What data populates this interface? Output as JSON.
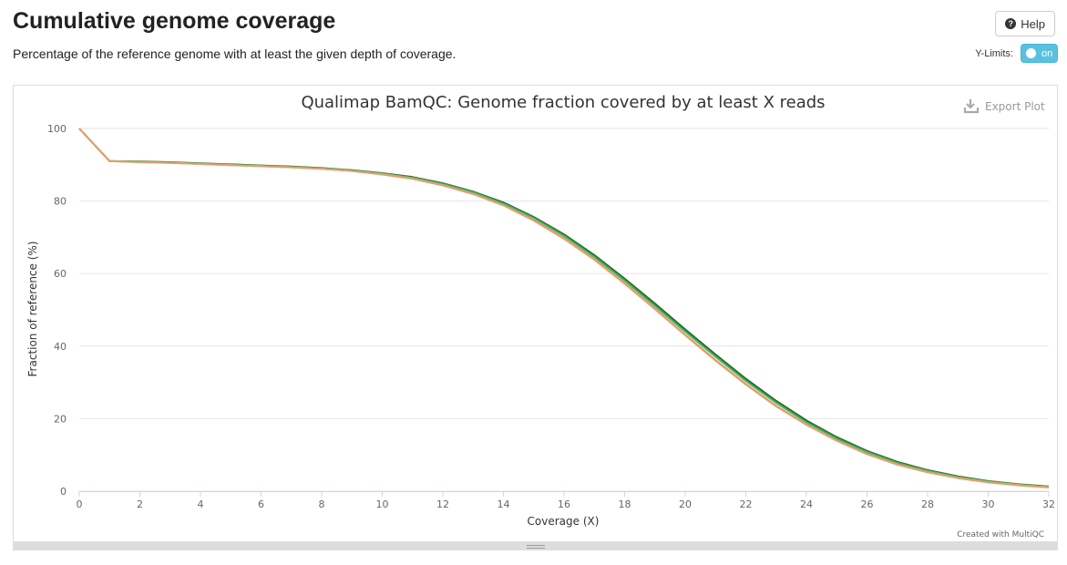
{
  "header": {
    "title": "Cumulative genome coverage",
    "description": "Percentage of the reference genome with at least the given depth of coverage.",
    "help_label": "Help",
    "ylimits_label": "Y-Limits:",
    "toggle_label": "on"
  },
  "plot": {
    "export_label": "Export Plot",
    "credit": "Created with MultiQC"
  },
  "colors": {
    "toggle": "#5bc0de",
    "series": [
      "#2d6a1f",
      "#3cb371",
      "#f0a050",
      "#e0a070"
    ]
  },
  "chart_data": {
    "type": "line",
    "title": "Qualimap BamQC: Genome fraction covered by at least X reads",
    "xlabel": "Coverage (X)",
    "ylabel": "Fraction of reference (%)",
    "xlim": [
      0,
      32
    ],
    "ylim": [
      0,
      100
    ],
    "x_ticks": [
      0,
      2,
      4,
      6,
      8,
      10,
      12,
      14,
      16,
      18,
      20,
      22,
      24,
      26,
      28,
      30,
      32
    ],
    "y_ticks": [
      0,
      20,
      40,
      60,
      80,
      100
    ],
    "grid": true,
    "legend": "none",
    "x": [
      0,
      1,
      2,
      3,
      4,
      5,
      6,
      7,
      8,
      9,
      10,
      11,
      12,
      13,
      14,
      15,
      16,
      17,
      18,
      19,
      20,
      21,
      22,
      23,
      24,
      25,
      26,
      27,
      28,
      29,
      30,
      31,
      32
    ],
    "series": [
      {
        "color": "#2d6a1f",
        "values": [
          100,
          91,
          90.9,
          90.7,
          90.4,
          90.1,
          89.8,
          89.5,
          89.1,
          88.5,
          87.7,
          86.6,
          84.9,
          82.6,
          79.6,
          75.6,
          70.8,
          65.1,
          58.6,
          51.7,
          44.6,
          37.7,
          31.0,
          24.9,
          19.5,
          14.9,
          11.1,
          8.1,
          5.8,
          4.1,
          2.8,
          1.9,
          1.3
        ]
      },
      {
        "color": "#3cb371",
        "values": [
          100,
          91,
          90.8,
          90.6,
          90.3,
          90.0,
          89.7,
          89.4,
          89.0,
          88.4,
          87.6,
          86.4,
          84.7,
          82.4,
          79.3,
          75.3,
          70.4,
          64.6,
          58.1,
          51.1,
          44.0,
          37.1,
          30.4,
          24.4,
          19.0,
          14.5,
          10.8,
          7.8,
          5.6,
          3.9,
          2.7,
          1.8,
          1.2
        ]
      },
      {
        "color": "#f0a050",
        "values": [
          100,
          91,
          90.7,
          90.5,
          90.2,
          89.9,
          89.6,
          89.3,
          88.9,
          88.3,
          87.4,
          86.2,
          84.4,
          82.0,
          78.9,
          74.8,
          69.8,
          64.0,
          57.4,
          50.4,
          43.2,
          36.2,
          29.6,
          23.6,
          18.4,
          14.0,
          10.3,
          7.4,
          5.3,
          3.7,
          2.5,
          1.7,
          1.1
        ]
      },
      {
        "color": "#e0a070",
        "values": [
          100,
          91,
          90.7,
          90.5,
          90.2,
          89.9,
          89.6,
          89.3,
          88.9,
          88.3,
          87.3,
          86.1,
          84.3,
          81.9,
          78.8,
          74.6,
          69.6,
          63.8,
          57.2,
          50.2,
          43.0,
          36.0,
          29.4,
          23.4,
          18.3,
          13.9,
          10.2,
          7.3,
          5.2,
          3.6,
          2.4,
          1.6,
          1.0
        ]
      }
    ]
  }
}
